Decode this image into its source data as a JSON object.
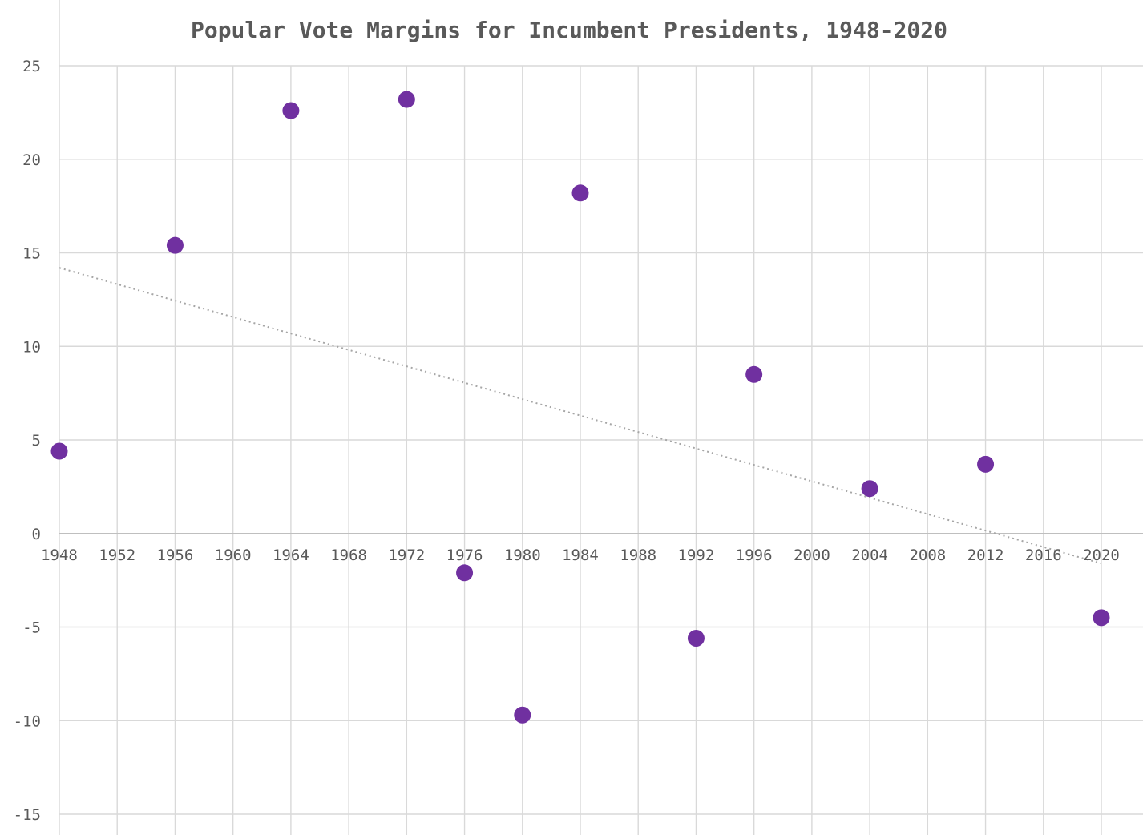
{
  "chart_data": {
    "type": "scatter",
    "title": "Popular Vote Margins for Incumbent Presidents, 1948-2020",
    "xlabel": "",
    "ylabel": "",
    "xlim": [
      1948,
      2020
    ],
    "ylim": [
      -15,
      25
    ],
    "x_ticks": [
      "1948",
      "1952",
      "1956",
      "1960",
      "1964",
      "1968",
      "1972",
      "1976",
      "1980",
      "1984",
      "1988",
      "1992",
      "1996",
      "2000",
      "2004",
      "2008",
      "2012",
      "2016",
      "2020"
    ],
    "y_ticks": [
      "25",
      "20",
      "15",
      "10",
      "5",
      "0",
      "-5",
      "-10",
      "-15"
    ],
    "grid": true,
    "marker_color": "#7030a0",
    "trendline": {
      "type": "linear",
      "style": "dotted",
      "color": "#a6a6a6",
      "start": [
        1948,
        14.2
      ],
      "end": [
        2020,
        -1.6
      ]
    },
    "points": [
      {
        "x": 1948,
        "y": 4.4
      },
      {
        "x": 1956,
        "y": 15.4
      },
      {
        "x": 1964,
        "y": 22.6
      },
      {
        "x": 1972,
        "y": 23.2
      },
      {
        "x": 1976,
        "y": -2.1
      },
      {
        "x": 1980,
        "y": -9.7
      },
      {
        "x": 1984,
        "y": 18.2
      },
      {
        "x": 1992,
        "y": -5.6
      },
      {
        "x": 1996,
        "y": 8.5
      },
      {
        "x": 2004,
        "y": 2.4
      },
      {
        "x": 2012,
        "y": 3.7
      },
      {
        "x": 2020,
        "y": -4.5
      }
    ]
  }
}
